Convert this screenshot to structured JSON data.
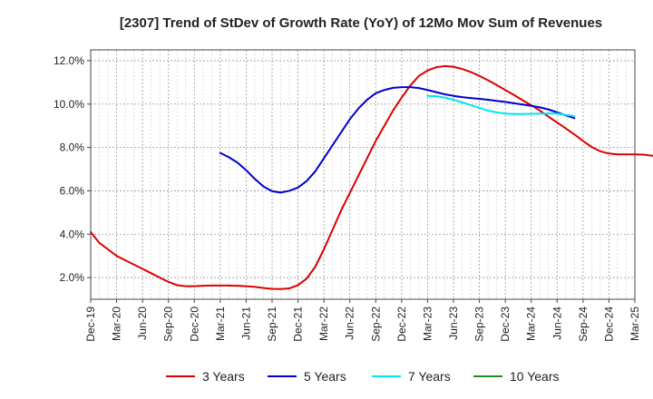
{
  "chart_data": {
    "type": "line",
    "title": "[2307]  Trend of StDev of Growth Rate (YoY) of 12Mo Mov Sum of Revenues",
    "xlabel": "",
    "ylabel": "",
    "ylim": [
      1.0,
      12.5
    ],
    "yticks": [
      2.0,
      4.0,
      6.0,
      8.0,
      10.0,
      12.0
    ],
    "ytick_labels": [
      "2.0%",
      "4.0%",
      "6.0%",
      "8.0%",
      "10.0%",
      "12.0%"
    ],
    "grid": true,
    "legend_position": "bottom",
    "x_start": "2019-12",
    "x_end": "2025-03",
    "xtick_labels": [
      "Dec-19",
      "Mar-20",
      "Jun-20",
      "Sep-20",
      "Dec-20",
      "Mar-21",
      "Jun-21",
      "Sep-21",
      "Dec-21",
      "Mar-22",
      "Jun-22",
      "Sep-22",
      "Dec-22",
      "Mar-23",
      "Jun-23",
      "Sep-23",
      "Dec-23",
      "Mar-24",
      "Jun-24",
      "Sep-24",
      "Dec-24",
      "Mar-25"
    ],
    "series": [
      {
        "name": "3 Years",
        "color": "#dd0000",
        "points": [
          [
            0,
            4.1
          ],
          [
            1,
            3.6
          ],
          [
            2,
            3.3
          ],
          [
            3,
            3.0
          ],
          [
            4,
            2.8
          ],
          [
            5,
            2.6
          ],
          [
            6,
            2.4
          ],
          [
            7,
            2.2
          ],
          [
            8,
            2.0
          ],
          [
            9,
            1.8
          ],
          [
            10,
            1.65
          ],
          [
            11,
            1.6
          ],
          [
            12,
            1.6
          ],
          [
            13,
            1.62
          ],
          [
            14,
            1.63
          ],
          [
            15,
            1.63
          ],
          [
            16,
            1.63
          ],
          [
            17,
            1.62
          ],
          [
            18,
            1.6
          ],
          [
            19,
            1.57
          ],
          [
            20,
            1.52
          ],
          [
            21,
            1.48
          ],
          [
            22,
            1.47
          ],
          [
            23,
            1.5
          ],
          [
            24,
            1.65
          ],
          [
            25,
            1.95
          ],
          [
            26,
            2.5
          ],
          [
            27,
            3.3
          ],
          [
            28,
            4.2
          ],
          [
            29,
            5.1
          ],
          [
            30,
            5.9
          ],
          [
            31,
            6.7
          ],
          [
            32,
            7.5
          ],
          [
            33,
            8.3
          ],
          [
            34,
            9.0
          ],
          [
            35,
            9.7
          ],
          [
            36,
            10.3
          ],
          [
            37,
            10.85
          ],
          [
            38,
            11.3
          ],
          [
            39,
            11.55
          ],
          [
            40,
            11.7
          ],
          [
            41,
            11.75
          ],
          [
            42,
            11.72
          ],
          [
            43,
            11.62
          ],
          [
            44,
            11.48
          ],
          [
            45,
            11.3
          ],
          [
            46,
            11.1
          ],
          [
            47,
            10.88
          ],
          [
            48,
            10.65
          ],
          [
            49,
            10.42
          ],
          [
            50,
            10.18
          ],
          [
            51,
            9.95
          ],
          [
            52,
            9.7
          ],
          [
            53,
            9.42
          ],
          [
            54,
            9.15
          ],
          [
            55,
            8.88
          ],
          [
            56,
            8.6
          ],
          [
            57,
            8.3
          ],
          [
            58,
            8.02
          ],
          [
            59,
            7.82
          ],
          [
            60,
            7.72
          ],
          [
            61,
            7.68
          ],
          [
            62,
            7.68
          ],
          [
            63,
            7.68
          ],
          [
            64,
            7.67
          ],
          [
            65,
            7.62
          ],
          [
            66,
            7.55
          ]
        ]
      },
      {
        "name": "5 Years",
        "color": "#0000cc",
        "points": [
          [
            15,
            7.75
          ],
          [
            16,
            7.55
          ],
          [
            17,
            7.3
          ],
          [
            18,
            6.95
          ],
          [
            19,
            6.55
          ],
          [
            20,
            6.2
          ],
          [
            21,
            5.98
          ],
          [
            22,
            5.92
          ],
          [
            23,
            6.0
          ],
          [
            24,
            6.15
          ],
          [
            25,
            6.45
          ],
          [
            26,
            6.9
          ],
          [
            27,
            7.5
          ],
          [
            28,
            8.1
          ],
          [
            29,
            8.7
          ],
          [
            30,
            9.3
          ],
          [
            31,
            9.8
          ],
          [
            32,
            10.2
          ],
          [
            33,
            10.5
          ],
          [
            34,
            10.65
          ],
          [
            35,
            10.75
          ],
          [
            36,
            10.78
          ],
          [
            37,
            10.78
          ],
          [
            38,
            10.74
          ],
          [
            39,
            10.65
          ],
          [
            40,
            10.55
          ],
          [
            41,
            10.45
          ],
          [
            42,
            10.38
          ],
          [
            43,
            10.32
          ],
          [
            44,
            10.28
          ],
          [
            45,
            10.24
          ],
          [
            46,
            10.2
          ],
          [
            47,
            10.15
          ],
          [
            48,
            10.1
          ],
          [
            49,
            10.04
          ],
          [
            50,
            9.98
          ],
          [
            51,
            9.92
          ],
          [
            52,
            9.85
          ],
          [
            53,
            9.75
          ],
          [
            54,
            9.62
          ],
          [
            55,
            9.48
          ],
          [
            56,
            9.35
          ]
        ]
      },
      {
        "name": "7 Years",
        "color": "#00e5ee",
        "points": [
          [
            39,
            10.38
          ],
          [
            40,
            10.36
          ],
          [
            41,
            10.3
          ],
          [
            42,
            10.2
          ],
          [
            43,
            10.08
          ],
          [
            44,
            9.95
          ],
          [
            45,
            9.82
          ],
          [
            46,
            9.7
          ],
          [
            47,
            9.62
          ],
          [
            48,
            9.56
          ],
          [
            49,
            9.54
          ],
          [
            50,
            9.54
          ],
          [
            51,
            9.55
          ],
          [
            52,
            9.56
          ],
          [
            53,
            9.57
          ],
          [
            54,
            9.56
          ],
          [
            55,
            9.5
          ],
          [
            56,
            9.45
          ]
        ]
      },
      {
        "name": "10 Years",
        "color": "#228b22",
        "points": []
      }
    ]
  }
}
